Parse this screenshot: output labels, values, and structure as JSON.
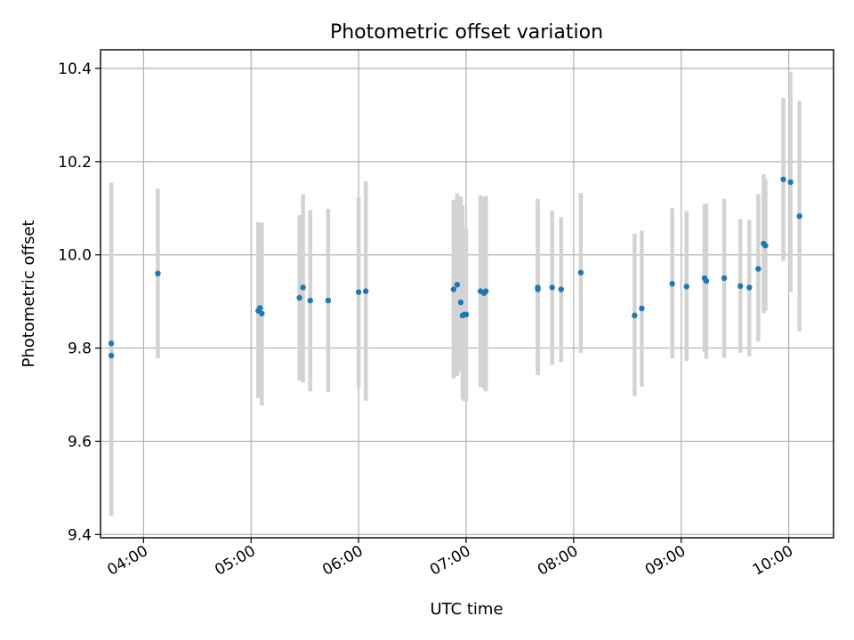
{
  "chart_data": {
    "type": "scatter",
    "title": "Photometric offset variation",
    "xlabel": "UTC time",
    "ylabel": "Photometric offset",
    "xlim": [
      "03:36",
      "10:25"
    ],
    "ylim": [
      9.393,
      10.44
    ],
    "x_ticks": [
      "04:00",
      "05:00",
      "06:00",
      "07:00",
      "08:00",
      "09:00",
      "10:00"
    ],
    "y_ticks": [
      9.4,
      9.6,
      9.8,
      10.0,
      10.2,
      10.4
    ],
    "y_tick_labels": [
      "9.4",
      "9.6",
      "9.8",
      "10.0",
      "10.2",
      "10.4"
    ],
    "grid": true,
    "colors": {
      "point": "#1f77b4",
      "error_bar": "#d3d3d3",
      "grid": "#b0b0b0"
    },
    "series": [
      {
        "points": [
          {
            "x": "03:42",
            "y": 9.81,
            "low": 9.46,
            "high": 10.155
          },
          {
            "x": "03:42",
            "y": 9.784,
            "low": 9.44,
            "high": 10.15
          },
          {
            "x": "04:08",
            "y": 9.96,
            "low": 9.778,
            "high": 10.142
          },
          {
            "x": "05:04",
            "y": 9.88,
            "low": 9.692,
            "high": 10.07
          },
          {
            "x": "05:05",
            "y": 9.886,
            "low": 9.7,
            "high": 10.06
          },
          {
            "x": "05:06",
            "y": 9.874,
            "low": 9.677,
            "high": 10.069
          },
          {
            "x": "05:27",
            "y": 9.908,
            "low": 9.73,
            "high": 10.085
          },
          {
            "x": "05:29",
            "y": 9.93,
            "low": 9.726,
            "high": 10.13
          },
          {
            "x": "05:33",
            "y": 9.902,
            "low": 9.707,
            "high": 10.096
          },
          {
            "x": "05:43",
            "y": 9.902,
            "low": 9.705,
            "high": 10.099
          },
          {
            "x": "06:00",
            "y": 9.92,
            "low": 9.716,
            "high": 10.124
          },
          {
            "x": "06:04",
            "y": 9.922,
            "low": 9.687,
            "high": 10.158
          },
          {
            "x": "06:53",
            "y": 9.926,
            "low": 9.735,
            "high": 10.118
          },
          {
            "x": "06:55",
            "y": 9.936,
            "low": 9.74,
            "high": 10.132
          },
          {
            "x": "06:57",
            "y": 9.898,
            "low": 9.75,
            "high": 10.125
          },
          {
            "x": "06:58",
            "y": 9.87,
            "low": 9.69,
            "high": 10.106
          },
          {
            "x": "06:59",
            "y": 9.872,
            "low": 9.686,
            "high": 10.06
          },
          {
            "x": "07:00",
            "y": 9.872,
            "low": 9.686,
            "high": 10.057
          },
          {
            "x": "07:08",
            "y": 9.922,
            "low": 9.716,
            "high": 10.128
          },
          {
            "x": "07:10",
            "y": 9.918,
            "low": 9.712,
            "high": 10.124
          },
          {
            "x": "07:11",
            "y": 9.922,
            "low": 9.707,
            "high": 10.126
          },
          {
            "x": "07:40",
            "y": 9.93,
            "low": 9.742,
            "high": 10.12
          },
          {
            "x": "07:40",
            "y": 9.926,
            "low": 9.745,
            "high": 10.11
          },
          {
            "x": "07:48",
            "y": 9.93,
            "low": 9.764,
            "high": 10.095
          },
          {
            "x": "07:53",
            "y": 9.926,
            "low": 9.77,
            "high": 10.081
          },
          {
            "x": "08:04",
            "y": 9.962,
            "low": 9.79,
            "high": 10.133
          },
          {
            "x": "08:34",
            "y": 9.87,
            "low": 9.697,
            "high": 10.046
          },
          {
            "x": "08:38",
            "y": 9.885,
            "low": 9.717,
            "high": 10.052
          },
          {
            "x": "08:55",
            "y": 9.938,
            "low": 9.778,
            "high": 10.1
          },
          {
            "x": "09:03",
            "y": 9.932,
            "low": 9.772,
            "high": 10.094
          },
          {
            "x": "09:13",
            "y": 9.95,
            "low": 9.792,
            "high": 10.108
          },
          {
            "x": "09:14",
            "y": 9.944,
            "low": 9.777,
            "high": 10.11
          },
          {
            "x": "09:24",
            "y": 9.95,
            "low": 9.779,
            "high": 10.12
          },
          {
            "x": "09:33",
            "y": 9.933,
            "low": 9.79,
            "high": 10.077
          },
          {
            "x": "09:38",
            "y": 9.93,
            "low": 9.782,
            "high": 10.075
          },
          {
            "x": "09:43",
            "y": 9.97,
            "low": 9.814,
            "high": 10.13
          },
          {
            "x": "09:46",
            "y": 10.024,
            "low": 9.875,
            "high": 10.173
          },
          {
            "x": "09:47",
            "y": 10.02,
            "low": 9.88,
            "high": 10.162
          },
          {
            "x": "09:57",
            "y": 10.162,
            "low": 9.987,
            "high": 10.337
          },
          {
            "x": "10:01",
            "y": 10.156,
            "low": 9.92,
            "high": 10.393
          },
          {
            "x": "10:06",
            "y": 10.083,
            "low": 9.836,
            "high": 10.33
          }
        ]
      }
    ]
  }
}
